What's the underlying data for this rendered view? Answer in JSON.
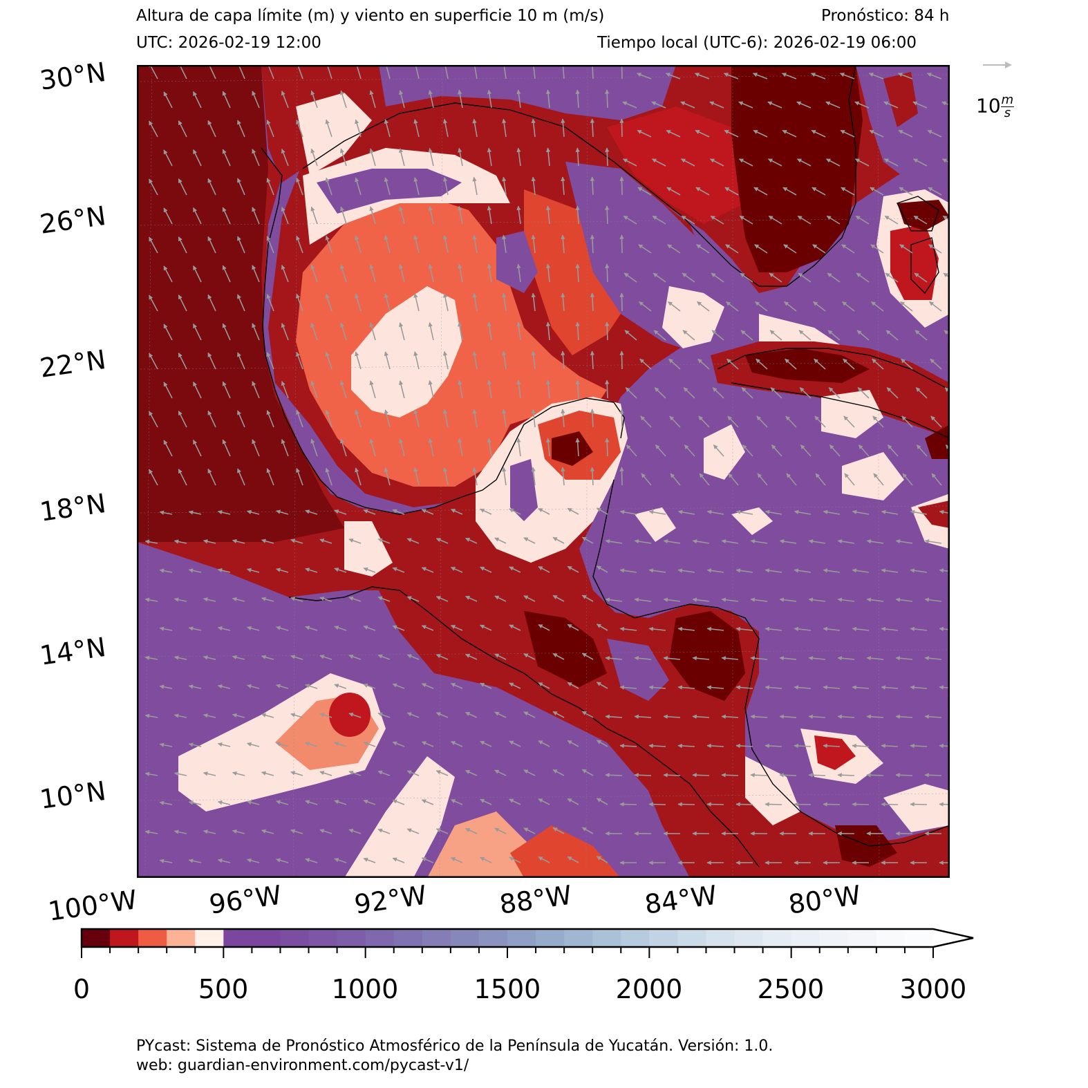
{
  "header": {
    "title": "Altura de capa límite (m) y viento en superficie 10 m (m/s)",
    "forecast": "Pronóstico: 84 h",
    "utc": "UTC:  2026-02-19 12:00",
    "local": "Tiempo local (UTC-6): 2026-02-19 06:00"
  },
  "map": {
    "lat_labels": [
      "30°N",
      "26°N",
      "22°N",
      "18°N",
      "14°N",
      "10°N"
    ],
    "lon_labels": [
      "100°W",
      "96°W",
      "92°W",
      "88°W",
      "84°W",
      "80°W"
    ],
    "extent": {
      "lon_min": -100,
      "lon_max": -77.5,
      "lat_min": 8,
      "lat_max": 30.5
    },
    "quiver_key": {
      "value": "10",
      "unit_num": "m",
      "unit_den": "s"
    },
    "colors": {
      "land_low": "#6b0000",
      "sea": "#7f4c9e",
      "arrow": "#9a9a9a"
    }
  },
  "colorbar": {
    "ticks": [
      "0",
      "500",
      "1000",
      "1500",
      "2000",
      "2500",
      "3000"
    ],
    "range": [
      0,
      3000
    ],
    "step": 100,
    "extend": "max",
    "colors": [
      "#67000d",
      "#c0161d",
      "#ef5b43",
      "#fcb295",
      "#fff0e8",
      "#7a46a0",
      "#7a46a0",
      "#7c4ea2",
      "#7d56a6",
      "#7e5ea9",
      "#7f68ad",
      "#8172b1",
      "#847db6",
      "#8788ba",
      "#8b94bf",
      "#90a0c5",
      "#97abcb",
      "#a1b6d1",
      "#abc1d7",
      "#b6cbdd",
      "#c2d4e3",
      "#ccdbe8",
      "#d6e2ec",
      "#dee7f0",
      "#e5ecf3",
      "#ebf0f6",
      "#f0f4f8",
      "#f4f7fa",
      "#f8fafc",
      "#fbfcfd"
    ]
  },
  "footer": {
    "line1": "PYcast: Sistema de Pronóstico Atmosférico de la Península de Yucatán. Versión: 1.0.",
    "line2": "web: guardian-environment.com/pycast-v1/"
  }
}
